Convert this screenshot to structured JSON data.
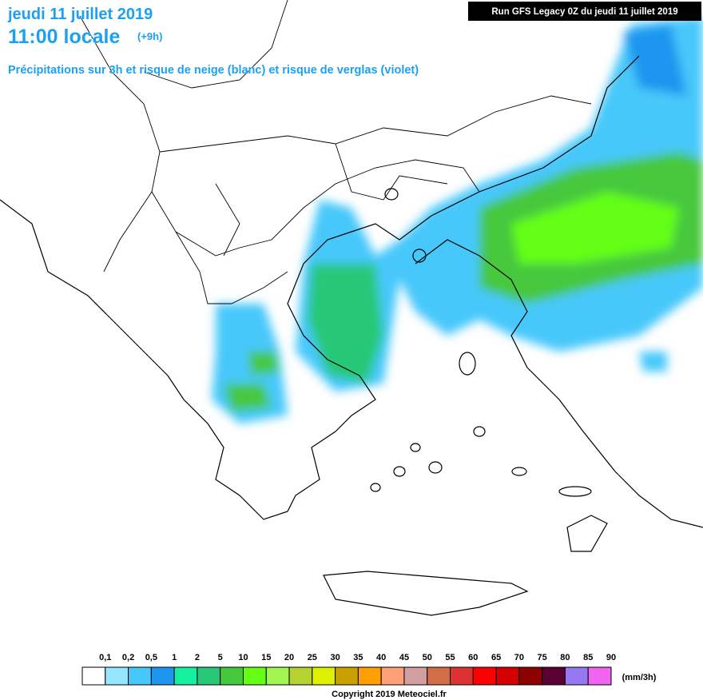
{
  "header": {
    "date": "jeudi 11 juillet 2019",
    "time": "11:00 locale",
    "offset": "(+9h)",
    "subtitle": "Précipitations sur 3h et risque de neige (blanc) et risque de verglas (violet)",
    "run": "Run GFS Legacy 0Z du jeudi 11 juillet 2019"
  },
  "legend": {
    "items": [
      {
        "label": "0,1",
        "color": "#ffffff"
      },
      {
        "label": "0,2",
        "color": "#96e6ff"
      },
      {
        "label": "0,5",
        "color": "#46c8fa"
      },
      {
        "label": "1",
        "color": "#1e96f0"
      },
      {
        "label": "2",
        "color": "#14f0a0"
      },
      {
        "label": "5",
        "color": "#28c878"
      },
      {
        "label": "10",
        "color": "#46c83c"
      },
      {
        "label": "15",
        "color": "#64ff14"
      },
      {
        "label": "20",
        "color": "#a0f550"
      },
      {
        "label": "25",
        "color": "#b4d232"
      },
      {
        "label": "30",
        "color": "#dcf000"
      },
      {
        "label": "35",
        "color": "#c8a000"
      },
      {
        "label": "40",
        "color": "#ffa000"
      },
      {
        "label": "45",
        "color": "#ffa078"
      },
      {
        "label": "50",
        "color": "#d2a0a0"
      },
      {
        "label": "55",
        "color": "#d26e46"
      },
      {
        "label": "60",
        "color": "#dc3232"
      },
      {
        "label": "65",
        "color": "#ff0000"
      },
      {
        "label": "70",
        "color": "#d20000"
      },
      {
        "label": "75",
        "color": "#8c0000"
      },
      {
        "label": "80",
        "color": "#5a0032"
      },
      {
        "label": "85",
        "color": "#9678f0"
      },
      {
        "label": "90",
        "color": "#f064f0"
      }
    ],
    "unit": "(mm/3h)"
  },
  "footer": {
    "copyright": "Copyright 2019 Meteociel.fr"
  }
}
